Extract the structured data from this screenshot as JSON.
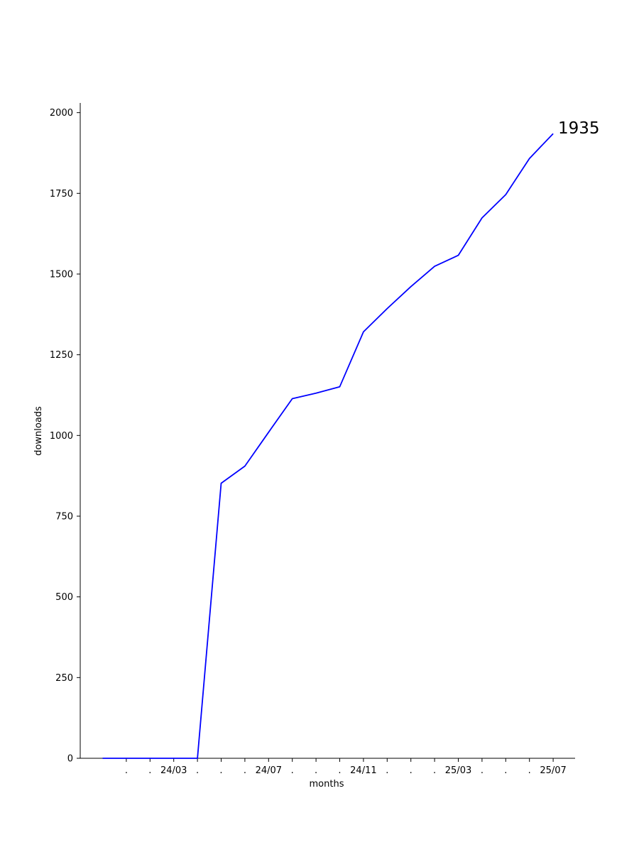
{
  "chart_data": {
    "type": "line",
    "xlabel": "months",
    "ylabel": "downloads",
    "ylim": [
      0,
      2030
    ],
    "y_ticks": [
      0,
      250,
      500,
      750,
      1000,
      1250,
      1500,
      1750,
      2000
    ],
    "x_tick_labels": [
      ".",
      ".",
      "24/03",
      ".",
      ".",
      ".",
      "24/07",
      ".",
      ".",
      ".",
      "24/11",
      ".",
      ".",
      ".",
      "25/03",
      ".",
      ".",
      ".",
      "25/07"
    ],
    "series": [
      {
        "color": "#0000ff",
        "x": [
          "24/01",
          "24/02",
          "24/03",
          "24/04",
          "24/05",
          "24/06",
          "24/07",
          "24/08",
          "24/09",
          "24/10",
          "24/11",
          "24/12",
          "25/01",
          "25/02",
          "25/03",
          "25/04",
          "25/05",
          "25/06",
          "25/07",
          "25/08"
        ],
        "values": [
          0,
          0,
          0,
          0,
          0,
          852,
          905,
          1010,
          1114,
          1131,
          1151,
          1321,
          1393,
          1461,
          1524,
          1558,
          1674,
          1746,
          1858,
          1935
        ]
      }
    ],
    "end_label": "1935",
    "grid": false
  }
}
